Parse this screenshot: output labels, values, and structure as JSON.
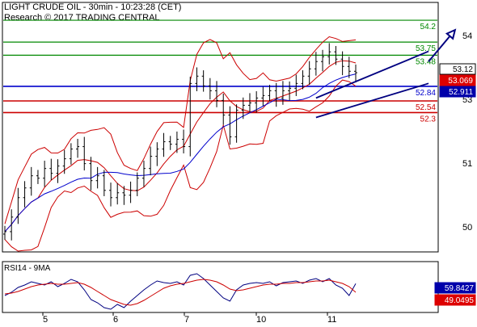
{
  "header": {
    "title": "LIGHT CRUDE OIL - 30min - 10:23:28 (CET)",
    "subtitle": "Research © 2017 TRADING CENTRAL"
  },
  "colors": {
    "price_bars": "#000000",
    "bollinger": "#cc0000",
    "moving_average": "#0000cc",
    "resistance": "#008800",
    "support": "#cc0000",
    "pivot": "#0000cc",
    "channel": "#000080",
    "rsi_line": "#000080",
    "rsi_ma": "#cc0000",
    "last_price_badge": "#000000",
    "red_badge": "#dd0000",
    "blue_badge": "#0000aa"
  },
  "chart_data": [
    {
      "type": "candlestick",
      "panel": "price",
      "title": "LIGHT CRUDE OIL - 30min - 10:23:28 (CET)",
      "x_tick_labels": [
        "5",
        "6",
        "7",
        "10",
        "11"
      ],
      "y_tick_labels": [
        "54",
        "53",
        "51",
        "50"
      ],
      "ylim": [
        49.45,
        54.55
      ],
      "grid": false,
      "levels": [
        {
          "label": "54.2",
          "value": 54.2,
          "kind": "resistance"
        },
        {
          "label": "53.75",
          "value": 53.75,
          "kind": "resistance"
        },
        {
          "label": "53.48",
          "value": 53.48,
          "kind": "resistance"
        },
        {
          "label": "52.84",
          "value": 52.84,
          "kind": "pivot"
        },
        {
          "label": "52.54",
          "value": 52.54,
          "kind": "support"
        },
        {
          "label": "52.3",
          "value": 52.3,
          "kind": "support"
        }
      ],
      "badges": [
        {
          "label": "53.12",
          "value": 53.12,
          "style": "last_price"
        },
        {
          "label": "53.069",
          "value": 53.069,
          "style": "red"
        },
        {
          "label": "52.911",
          "value": 52.911,
          "style": "blue"
        }
      ],
      "close_series_approx": [
        49.85,
        50.15,
        50.55,
        50.75,
        51.0,
        50.95,
        51.15,
        51.05,
        51.2,
        51.35,
        51.55,
        51.6,
        51.25,
        50.9,
        51.0,
        50.7,
        50.55,
        50.65,
        50.6,
        50.7,
        50.95,
        51.15,
        51.4,
        51.55,
        51.7,
        51.65,
        51.75,
        51.6,
        52.9,
        53.05,
        52.85,
        52.75,
        52.55,
        52.25,
        51.8,
        52.35,
        52.45,
        52.5,
        52.6,
        52.65,
        52.75,
        52.6,
        52.75,
        52.8,
        52.9,
        53.05,
        53.2,
        53.35,
        53.45,
        53.55,
        53.4,
        53.25,
        53.15,
        53.12
      ],
      "channel": {
        "lower": [
          [
            47,
            52.2
          ],
          [
            64,
            52.9
          ]
        ],
        "upper": [
          [
            47,
            52.6
          ],
          [
            64,
            53.56
          ]
        ]
      },
      "projection": {
        "from": [
          64,
          53.35
        ],
        "to": [
          68,
          54.0
        ]
      }
    },
    {
      "type": "line",
      "panel": "rsi",
      "title": "RSI14 - 9MA",
      "series": [
        {
          "name": "RSI14",
          "values": [
            45,
            49,
            55,
            58,
            62,
            60,
            58,
            62,
            56,
            60,
            65,
            62,
            52,
            40,
            36,
            30,
            28,
            34,
            30,
            38,
            45,
            52,
            58,
            63,
            61,
            60,
            62,
            58,
            70,
            72,
            66,
            58,
            50,
            42,
            38,
            52,
            58,
            60,
            61,
            60,
            62,
            57,
            61,
            62,
            63,
            60,
            64,
            66,
            62,
            66,
            58,
            54,
            45,
            59.8
          ]
        },
        {
          "name": "9MA",
          "values": [
            47,
            48,
            50,
            53,
            56,
            58,
            59,
            60,
            59,
            59,
            60,
            61,
            59,
            55,
            50,
            45,
            40,
            37,
            34,
            33,
            35,
            39,
            44,
            49,
            54,
            57,
            59,
            60,
            62,
            64,
            65,
            64,
            62,
            58,
            53,
            51,
            52,
            54,
            56,
            58,
            59,
            59,
            60,
            60,
            61,
            61,
            62,
            63,
            63,
            64,
            62,
            60,
            56,
            49
          ]
        }
      ],
      "ylim": [
        25,
        85
      ],
      "badges": [
        {
          "label": "59.8427",
          "value": 59.8427,
          "style": "blue"
        },
        {
          "label": "49.0495",
          "value": 49.0495,
          "style": "red"
        }
      ]
    }
  ]
}
